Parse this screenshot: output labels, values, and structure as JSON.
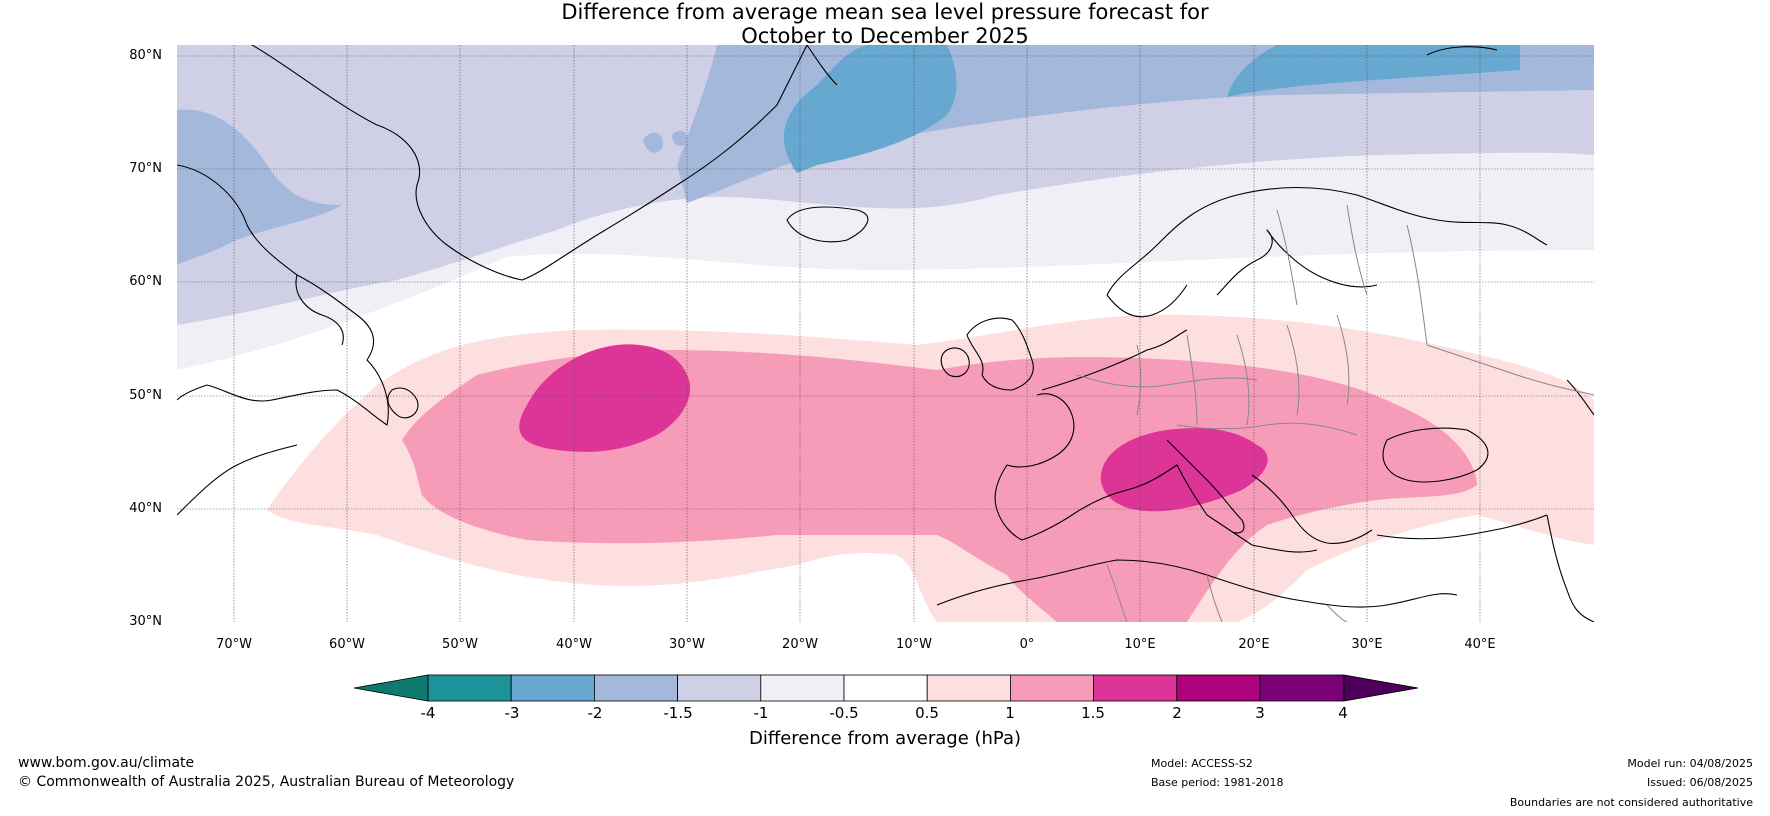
{
  "title": {
    "line1": "Difference from average mean sea level pressure forecast for",
    "line2": "October to December 2025"
  },
  "map": {
    "lat_labels": [
      "80°N",
      "70°N",
      "60°N",
      "50°N",
      "40°N",
      "30°N"
    ],
    "lon_labels": [
      "70°W",
      "60°W",
      "50°W",
      "40°W",
      "30°W",
      "20°W",
      "10°W",
      "0°",
      "10°E",
      "20°E",
      "30°E",
      "40°E"
    ],
    "extent": {
      "lon_min": -75,
      "lon_max": 50,
      "lat_min": 30,
      "lat_max": 81
    }
  },
  "colorbar": {
    "ticks": [
      "-4",
      "-3",
      "-2",
      "-1.5",
      "-1",
      "-0.5",
      "0.5",
      "1",
      "1.5",
      "2",
      "3",
      "4"
    ],
    "colors": [
      "#0d7a6d",
      "#1e9299",
      "#66a8d0",
      "#a4b8dc",
      "#cfd0e6",
      "#f1eef6",
      "#ffffff",
      "#fddfe0",
      "#f79cb8",
      "#dd3497",
      "#ad017e",
      "#7a0177",
      "#4d005a"
    ],
    "label": "Difference from average (hPa)"
  },
  "footer": {
    "website": "www.bom.gov.au/climate",
    "copyright": "© Commonwealth of Australia 2025, Australian Bureau of Meteorology",
    "model": "Model: ACCESS-S2",
    "base_period": "Base period: 1981-2018",
    "model_run": "Model run: 04/08/2025",
    "issued": "Issued: 06/08/2025",
    "disclaimer": "Boundaries are not considered authoritative"
  }
}
